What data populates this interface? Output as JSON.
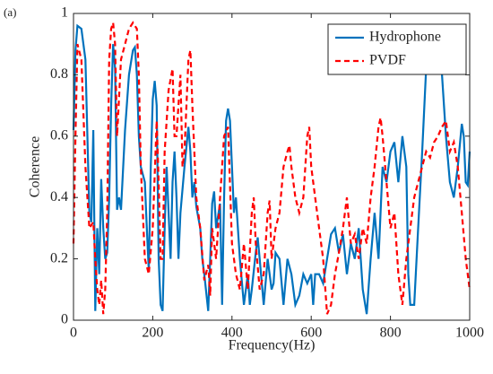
{
  "chart_data": {
    "type": "line",
    "annotation": "(a)",
    "xlabel": "Frequency(Hz)",
    "ylabel": "Coherence",
    "xlim": [
      0,
      1000
    ],
    "xticks": [
      0,
      200,
      400,
      600,
      800,
      1000
    ],
    "ylim": [
      0,
      1
    ],
    "yticks": [
      0,
      0.2,
      0.4,
      0.6,
      0.8,
      1
    ],
    "legend": "upper right",
    "series": [
      {
        "name": "Hydrophone",
        "color": "#0072bd",
        "dash": "solid",
        "x": [
          0,
          5,
          10,
          20,
          30,
          35,
          40,
          45,
          50,
          55,
          60,
          65,
          70,
          75,
          80,
          85,
          90,
          95,
          100,
          105,
          110,
          115,
          120,
          130,
          140,
          150,
          155,
          160,
          165,
          170,
          180,
          185,
          190,
          195,
          200,
          205,
          210,
          215,
          220,
          225,
          230,
          235,
          240,
          245,
          250,
          255,
          260,
          265,
          270,
          280,
          290,
          295,
          300,
          305,
          310,
          320,
          325,
          330,
          340,
          345,
          350,
          355,
          360,
          370,
          375,
          380,
          385,
          390,
          395,
          400,
          405,
          410,
          420,
          430,
          440,
          445,
          450,
          460,
          465,
          470,
          480,
          490,
          500,
          505,
          510,
          520,
          530,
          540,
          550,
          555,
          560,
          570,
          580,
          590,
          600,
          605,
          610,
          620,
          630,
          640,
          650,
          660,
          670,
          680,
          690,
          700,
          710,
          720,
          730,
          740,
          750,
          760,
          770,
          780,
          790,
          800,
          810,
          820,
          830,
          840,
          845,
          850,
          860,
          870,
          880,
          890,
          900,
          910,
          920,
          930,
          940,
          950,
          960,
          970,
          980,
          985,
          990,
          995,
          1000
        ],
        "values": [
          0.62,
          0.88,
          0.96,
          0.95,
          0.85,
          0.6,
          0.35,
          0.32,
          0.62,
          0.03,
          0.3,
          0.15,
          0.46,
          0.3,
          0.2,
          0.22,
          0.4,
          0.7,
          0.9,
          0.82,
          0.36,
          0.4,
          0.36,
          0.62,
          0.8,
          0.88,
          0.89,
          0.8,
          0.6,
          0.5,
          0.45,
          0.3,
          0.16,
          0.5,
          0.72,
          0.78,
          0.7,
          0.2,
          0.05,
          0.03,
          0.3,
          0.5,
          0.35,
          0.2,
          0.45,
          0.55,
          0.4,
          0.2,
          0.35,
          0.5,
          0.63,
          0.55,
          0.4,
          0.45,
          0.37,
          0.3,
          0.2,
          0.15,
          0.03,
          0.2,
          0.38,
          0.42,
          0.3,
          0.38,
          0.05,
          0.4,
          0.65,
          0.69,
          0.65,
          0.5,
          0.35,
          0.4,
          0.2,
          0.05,
          0.15,
          0.05,
          0.1,
          0.22,
          0.27,
          0.2,
          0.05,
          0.2,
          0.1,
          0.12,
          0.22,
          0.2,
          0.05,
          0.2,
          0.15,
          0.1,
          0.05,
          0.08,
          0.15,
          0.12,
          0.15,
          0.05,
          0.15,
          0.15,
          0.12,
          0.2,
          0.28,
          0.3,
          0.22,
          0.28,
          0.15,
          0.25,
          0.2,
          0.3,
          0.1,
          0.02,
          0.2,
          0.35,
          0.2,
          0.5,
          0.45,
          0.55,
          0.58,
          0.45,
          0.6,
          0.5,
          0.15,
          0.05,
          0.05,
          0.3,
          0.55,
          0.82,
          0.95,
          0.9,
          0.88,
          0.8,
          0.6,
          0.45,
          0.4,
          0.5,
          0.64,
          0.6,
          0.45,
          0.44,
          0.55
        ]
      },
      {
        "name": "PVDF",
        "color": "#ff0000",
        "dash": "dashed",
        "x": [
          0,
          5,
          10,
          20,
          30,
          40,
          50,
          55,
          60,
          65,
          70,
          75,
          80,
          85,
          90,
          95,
          100,
          105,
          110,
          120,
          130,
          140,
          150,
          160,
          165,
          170,
          180,
          190,
          200,
          210,
          215,
          220,
          225,
          230,
          240,
          250,
          255,
          260,
          270,
          275,
          280,
          290,
          295,
          300,
          305,
          310,
          320,
          330,
          340,
          345,
          350,
          360,
          370,
          380,
          390,
          400,
          410,
          420,
          430,
          440,
          450,
          455,
          460,
          470,
          480,
          490,
          495,
          500,
          510,
          520,
          530,
          540,
          545,
          550,
          560,
          570,
          580,
          590,
          595,
          600,
          610,
          620,
          630,
          640,
          650,
          660,
          670,
          680,
          690,
          700,
          710,
          720,
          730,
          740,
          750,
          760,
          770,
          775,
          780,
          790,
          800,
          810,
          820,
          830,
          840,
          850,
          860,
          870,
          880,
          890,
          900,
          910,
          920,
          930,
          940,
          950,
          960,
          970,
          980,
          990,
          1000
        ],
        "values": [
          0.25,
          0.6,
          0.9,
          0.85,
          0.5,
          0.3,
          0.32,
          0.2,
          0.1,
          0.05,
          0.13,
          0.02,
          0.1,
          0.35,
          0.85,
          0.95,
          0.97,
          0.9,
          0.6,
          0.85,
          0.9,
          0.95,
          0.97,
          0.95,
          0.8,
          0.5,
          0.2,
          0.15,
          0.3,
          0.65,
          0.45,
          0.2,
          0.2,
          0.55,
          0.75,
          0.82,
          0.6,
          0.6,
          0.8,
          0.5,
          0.55,
          0.85,
          0.88,
          0.7,
          0.55,
          0.4,
          0.3,
          0.13,
          0.18,
          0.08,
          0.3,
          0.2,
          0.4,
          0.6,
          0.63,
          0.25,
          0.15,
          0.1,
          0.25,
          0.1,
          0.35,
          0.4,
          0.25,
          0.1,
          0.15,
          0.35,
          0.39,
          0.2,
          0.3,
          0.35,
          0.5,
          0.55,
          0.57,
          0.5,
          0.4,
          0.35,
          0.4,
          0.6,
          0.63,
          0.5,
          0.4,
          0.3,
          0.2,
          0.02,
          0.05,
          0.15,
          0.22,
          0.3,
          0.4,
          0.25,
          0.28,
          0.2,
          0.3,
          0.25,
          0.4,
          0.5,
          0.63,
          0.66,
          0.6,
          0.45,
          0.3,
          0.35,
          0.15,
          0.05,
          0.2,
          0.3,
          0.4,
          0.45,
          0.5,
          0.55,
          0.53,
          0.58,
          0.6,
          0.63,
          0.65,
          0.55,
          0.58,
          0.5,
          0.35,
          0.2,
          0.1
        ]
      }
    ]
  }
}
